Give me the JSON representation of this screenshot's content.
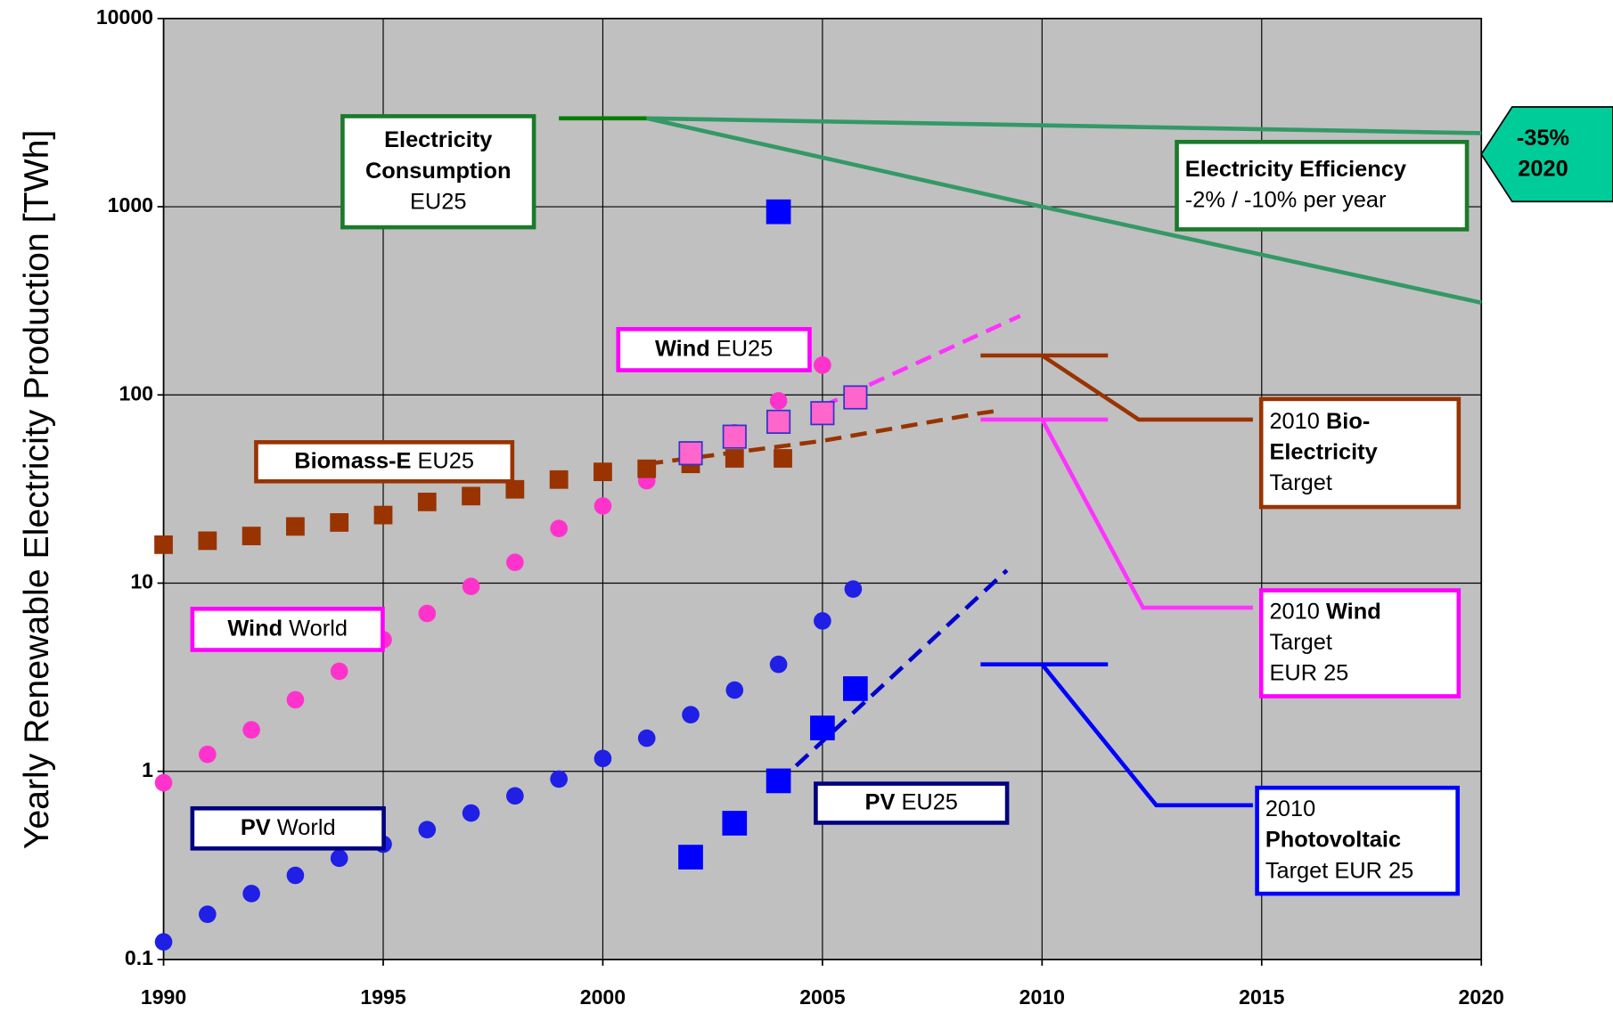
{
  "chart_data": {
    "type": "scatter",
    "ylabel": "Yearly Renewable Electricity Production [TWh]",
    "log_y": true,
    "grid": true,
    "xlim": [
      1990,
      2020
    ],
    "xticks": [
      1990,
      1995,
      2000,
      2005,
      2010,
      2015,
      2020
    ],
    "ylim": [
      0.1,
      10000
    ],
    "yticks": [
      0.1,
      1,
      10,
      100,
      1000,
      10000
    ],
    "background": "#c0c0c0",
    "series": [
      {
        "name": "PV World",
        "color": "#1f1fe6",
        "marker": "circle",
        "x": [
          1990,
          1991,
          1992,
          1993,
          1994,
          1995,
          1996,
          1997,
          1998,
          1999,
          2000,
          2001,
          2002,
          2003,
          2004,
          2005,
          2005.7
        ],
        "values": [
          0.124,
          0.174,
          0.224,
          0.28,
          0.345,
          0.41,
          0.49,
          0.6,
          0.74,
          0.91,
          1.17,
          1.5,
          2.0,
          2.7,
          3.7,
          6.3,
          9.3
        ]
      },
      {
        "name": "Wind World",
        "color": "#ff33cc",
        "marker": "circle",
        "x": [
          1990,
          1991,
          1992,
          1993,
          1994,
          1995,
          1996,
          1997,
          1998,
          1999,
          2000,
          2001,
          2002,
          2003,
          2004,
          2005
        ],
        "values": [
          0.87,
          1.23,
          1.66,
          2.4,
          3.4,
          5.0,
          6.9,
          9.6,
          12.9,
          19.5,
          25.7,
          35,
          49,
          63,
          93,
          144
        ]
      },
      {
        "name": "Biomass-E EU25",
        "color": "#993300",
        "marker": "square",
        "x": [
          1990,
          1991,
          1992,
          1993,
          1994,
          1995,
          1996,
          1997,
          1998,
          1999,
          2000,
          2001,
          2002,
          2003,
          2004.1
        ],
        "values": [
          16,
          16.8,
          17.8,
          20,
          21,
          23,
          27,
          29,
          31.5,
          35.5,
          39,
          40.5,
          43,
          46,
          46
        ]
      },
      {
        "name": "Wind EU25",
        "color": "#ff66cc",
        "marker": "square-large",
        "x": [
          2002,
          2003,
          2004,
          2005,
          2005.75
        ],
        "values": [
          49,
          60,
          72,
          80,
          97
        ]
      },
      {
        "name": "PV EU25",
        "color": "#0000ff",
        "marker": "square-xl",
        "x": [
          2002,
          2003,
          2004,
          2005,
          2005.75,
          2004
        ],
        "values": [
          0.35,
          0.53,
          0.89,
          1.7,
          2.75,
          940
        ]
      }
    ],
    "lines": [
      {
        "color": "#ff33ff",
        "dash": true,
        "x": [
          2005,
          2009.5
        ],
        "values": [
          87,
          263
        ]
      },
      {
        "color": "#993300",
        "dash": true,
        "x": [
          2001,
          2005,
          2008.6,
          2009.1
        ],
        "values": [
          43,
          57,
          80,
          83
        ]
      },
      {
        "color": "#0000cc",
        "dash": true,
        "x": [
          2004.4,
          2009.2
        ],
        "values": [
          1.07,
          11.7
        ]
      },
      {
        "color": "#008000",
        "dash": false,
        "x": [
          1999,
          2001
        ],
        "values": [
          2950,
          2950
        ]
      },
      {
        "color": "#339966",
        "dash": false,
        "x": [
          2001,
          2020
        ],
        "values": [
          2950,
          2460
        ]
      },
      {
        "color": "#339966",
        "dash": false,
        "x": [
          2001,
          2010,
          2020
        ],
        "values": [
          2950,
          1000,
          309
        ]
      },
      {
        "color": "#993300",
        "dash": false,
        "x": [
          2008.6,
          2011.5
        ],
        "values": [
          162,
          162
        ]
      },
      {
        "color": "#993300",
        "dash": false,
        "x": [
          2010,
          2012.2,
          2014.8
        ],
        "values": [
          162,
          74,
          74
        ]
      },
      {
        "color": "#ff33ff",
        "dash": false,
        "x": [
          2008.6,
          2011.5
        ],
        "values": [
          74,
          74
        ]
      },
      {
        "color": "#ff33ff",
        "dash": false,
        "x": [
          2010,
          2012.3,
          2014.8
        ],
        "values": [
          74,
          7.4,
          7.4
        ]
      },
      {
        "color": "#0000ff",
        "dash": false,
        "x": [
          2008.6,
          2011.5
        ],
        "values": [
          3.7,
          3.7
        ]
      },
      {
        "color": "#0000ff",
        "dash": false,
        "x": [
          2010,
          2012.6,
          2014.8
        ],
        "values": [
          3.7,
          0.66,
          0.66
        ]
      }
    ],
    "annotations": [
      {
        "color": "#1a7a2a",
        "lines": [
          [
            {
              "text": "Electricity",
              "bold": true
            }
          ],
          [
            {
              "text": "Consumption",
              "bold": true
            }
          ],
          [
            {
              "text": "EU25"
            }
          ]
        ]
      },
      {
        "color": "#1a7a2a",
        "lines": [
          [
            {
              "text": "Electricity Efficiency",
              "bold": true
            }
          ],
          [
            {
              "text": "-2% / -10% per year"
            }
          ]
        ]
      },
      {
        "color": "#ff00ff",
        "lines": [
          [
            {
              "text": "Wind",
              "bold": true
            },
            {
              "text": " EU25"
            }
          ]
        ]
      },
      {
        "color": "#993300",
        "lines": [
          [
            {
              "text": "Biomass-E",
              "bold": true
            },
            {
              "text": " EU25"
            }
          ]
        ]
      },
      {
        "color": "#993300",
        "lines": [
          [
            {
              "text": "2010 "
            },
            {
              "text": "Bio-",
              "bold": true
            }
          ],
          [
            {
              "text": "Electricity",
              "bold": true
            }
          ],
          [
            {
              "text": "Target"
            }
          ]
        ]
      },
      {
        "color": "#ff00ff",
        "lines": [
          [
            {
              "text": "2010 "
            },
            {
              "text": "Wind",
              "bold": true
            }
          ],
          [
            {
              "text": "Target"
            }
          ],
          [
            {
              "text": "EUR 25"
            }
          ]
        ]
      },
      {
        "color": "#ff00ff",
        "lines": [
          [
            {
              "text": "Wind",
              "bold": true
            },
            {
              "text": " World"
            }
          ]
        ]
      },
      {
        "color": "#000080",
        "lines": [
          [
            {
              "text": "PV",
              "bold": true
            },
            {
              "text": " World"
            }
          ]
        ]
      },
      {
        "color": "#000080",
        "lines": [
          [
            {
              "text": "PV",
              "bold": true
            },
            {
              "text": " EU25"
            }
          ]
        ]
      },
      {
        "color": "#0000ff",
        "lines": [
          [
            {
              "text": "2010"
            }
          ],
          [
            {
              "text": "Photovoltaic",
              "bold": true
            }
          ],
          [
            {
              "text": "Target EUR 25"
            }
          ]
        ]
      },
      {
        "color": "#00cc99",
        "lines": [
          [
            {
              "text": "-35%",
              "bold": true
            }
          ],
          [
            {
              "text": "2020",
              "bold": true
            }
          ]
        ]
      }
    ]
  }
}
